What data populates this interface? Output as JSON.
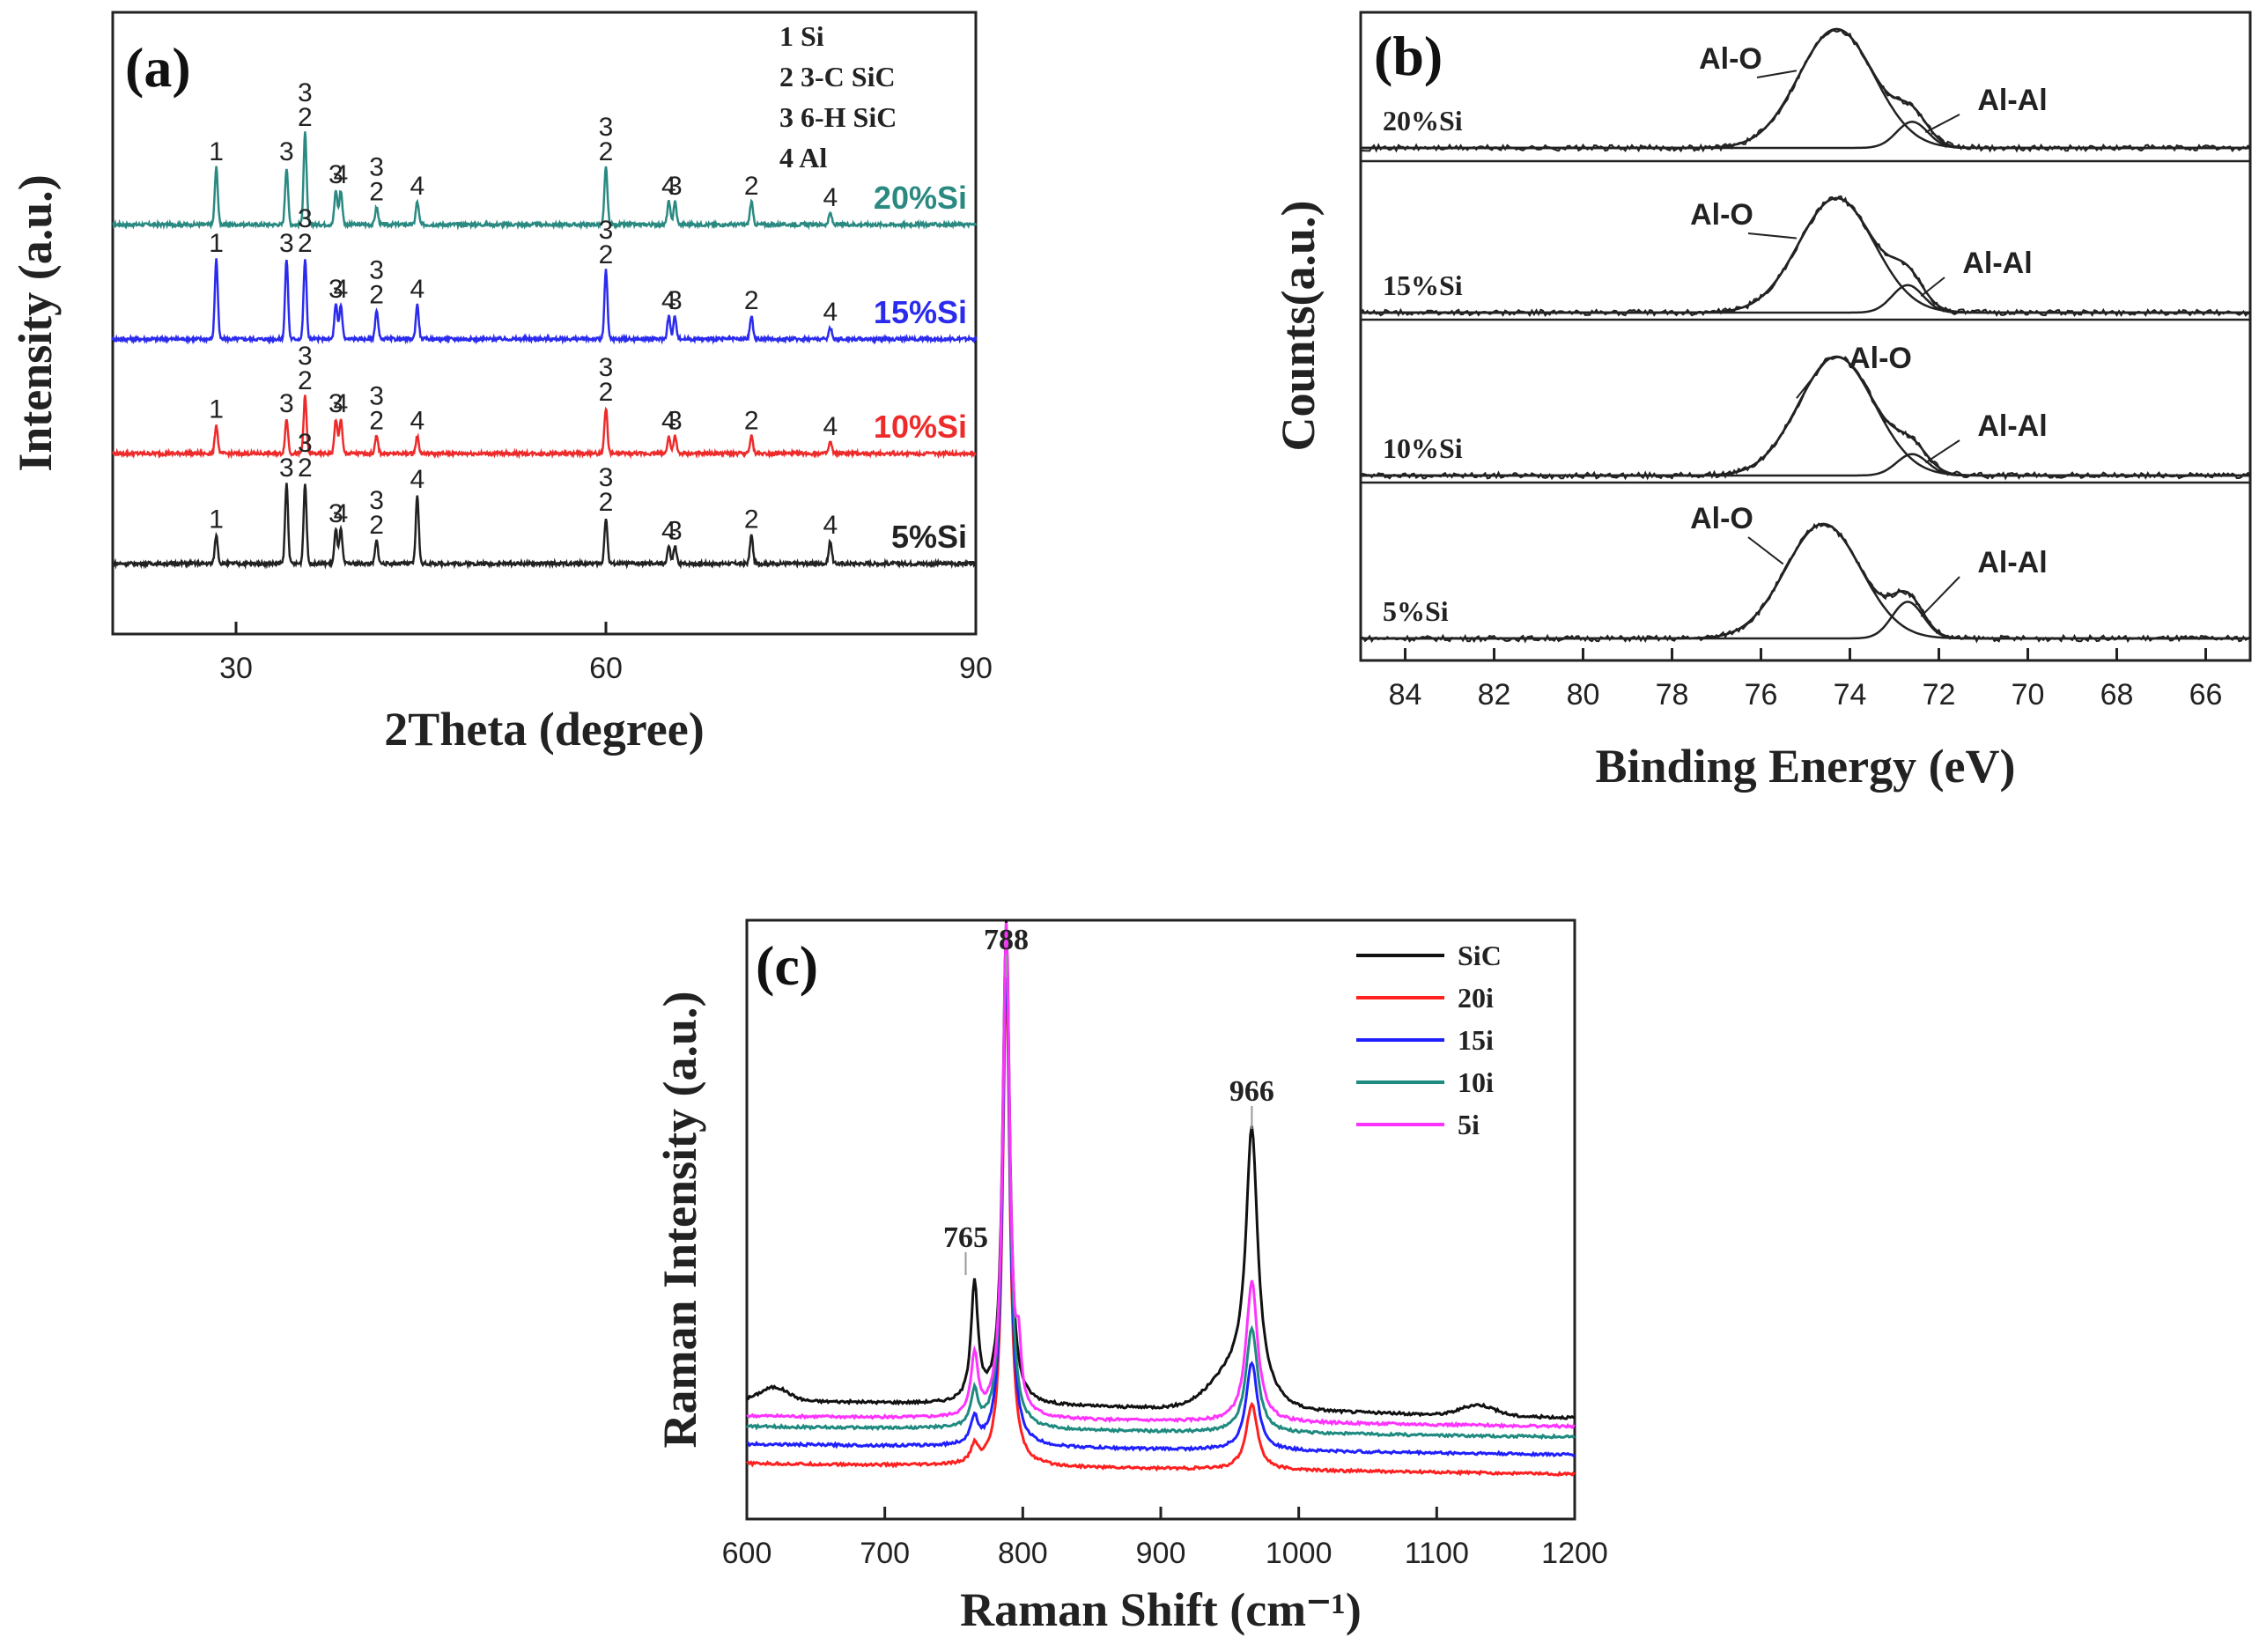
{
  "chart_data": [
    {
      "id": "a",
      "type": "line",
      "panel_label": "(a)",
      "xlabel": "2Theta (degree)",
      "ylabel": "Intensity (a.u.)",
      "xlim": [
        20,
        90
      ],
      "xticks": [
        30,
        60,
        90
      ],
      "legend_entries": [
        "1 Si",
        "2 3-C SiC",
        "3 6-H SiC",
        "4 Al"
      ],
      "series": [
        {
          "name": "20%Si",
          "color": "#2a8a82"
        },
        {
          "name": "15%Si",
          "color": "#2b2bee"
        },
        {
          "name": "10%Si",
          "color": "#ee2b2b"
        },
        {
          "name": "5%Si",
          "color": "#222222"
        }
      ],
      "peaks": [
        {
          "x": 28.4,
          "labels": [
            "1"
          ]
        },
        {
          "x": 34.1,
          "labels": [
            "3"
          ]
        },
        {
          "x": 35.6,
          "labels": [
            "3",
            "2"
          ]
        },
        {
          "x": 38.1,
          "labels": [
            "3"
          ]
        },
        {
          "x": 38.5,
          "labels": [
            "4"
          ]
        },
        {
          "x": 41.4,
          "labels": [
            "3",
            "2"
          ]
        },
        {
          "x": 44.7,
          "labels": [
            "4"
          ]
        },
        {
          "x": 60.0,
          "labels": [
            "3",
            "2"
          ]
        },
        {
          "x": 65.1,
          "labels": [
            "4"
          ]
        },
        {
          "x": 65.6,
          "labels": [
            "3"
          ]
        },
        {
          "x": 71.8,
          "labels": [
            "2"
          ]
        },
        {
          "x": 78.2,
          "labels": [
            "4"
          ]
        }
      ]
    },
    {
      "id": "b",
      "type": "line",
      "panel_label": "(b)",
      "xlabel": "Binding Energy (eV)",
      "ylabel": "Counts(a.u.)",
      "xlim": [
        85,
        65
      ],
      "xticks": [
        84,
        82,
        80,
        78,
        76,
        74,
        72,
        70,
        68,
        66
      ],
      "peak_labels": [
        "Al-O",
        "Al-Al"
      ],
      "series": [
        {
          "name": "20%Si",
          "alo_center": 74.3,
          "alal_center": 72.6
        },
        {
          "name": "15%Si",
          "alo_center": 74.3,
          "alal_center": 72.7
        },
        {
          "name": "10%Si",
          "alo_center": 74.3,
          "alal_center": 72.6
        },
        {
          "name": "5%Si",
          "alo_center": 74.6,
          "alal_center": 72.7
        }
      ]
    },
    {
      "id": "c",
      "type": "line",
      "panel_label": "(c)",
      "xlabel": "Raman Shift (cm⁻¹)",
      "ylabel": "Raman Intensity  (a.u.)",
      "xlim": [
        600,
        1200
      ],
      "xticks": [
        600,
        700,
        800,
        900,
        1000,
        1100,
        1200
      ],
      "annotations": [
        "788",
        "765",
        "966"
      ],
      "annotation_x": [
        788,
        765,
        966
      ],
      "series": [
        {
          "name": "SiC",
          "color": "#111111"
        },
        {
          "name": "20i",
          "color": "#ff2020"
        },
        {
          "name": "15i",
          "color": "#2020ff"
        },
        {
          "name": "10i",
          "color": "#1f8a80"
        },
        {
          "name": "5i",
          "color": "#ff33ff"
        }
      ]
    }
  ]
}
